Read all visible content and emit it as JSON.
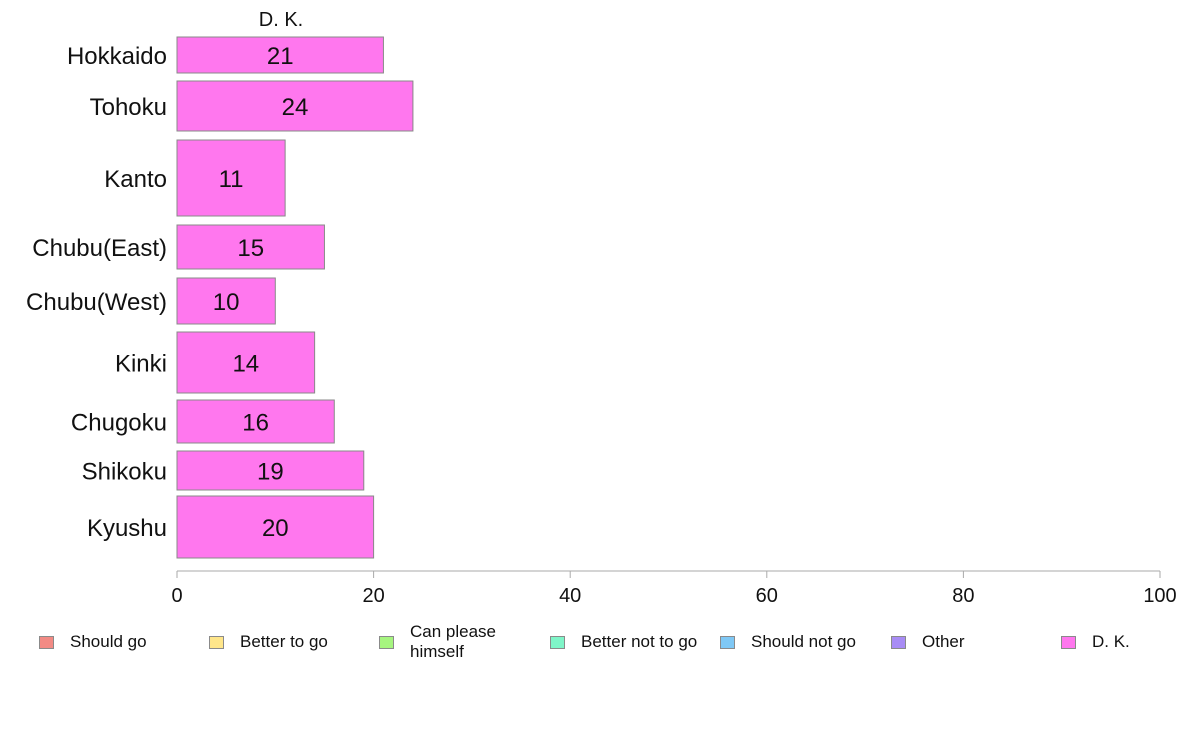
{
  "chart_data": {
    "type": "bar",
    "orientation": "horizontal",
    "stacked": true,
    "title": "D. K.",
    "categories": [
      "Hokkaido",
      "Tohoku",
      "Kanto",
      "Chubu(East)",
      "Chubu(West)",
      "Kinki",
      "Chugoku",
      "Shikoku",
      "Kyushu"
    ],
    "series": [
      {
        "name": "D. K.",
        "color": "#ff77ee",
        "values": [
          21,
          24,
          11,
          15,
          10,
          14,
          16,
          19,
          20
        ]
      }
    ],
    "xlim": [
      0,
      100
    ],
    "xticks": [
      0,
      20,
      40,
      60,
      80,
      100
    ],
    "grid": false,
    "legend_position": "bottom"
  },
  "legend": [
    {
      "label": "Should go",
      "color": "#f28a84"
    },
    {
      "label": "Better to go",
      "color": "#ffe68a"
    },
    {
      "label": "Can please\nhimself",
      "color": "#a6f57f"
    },
    {
      "label": "Better not to go",
      "color": "#7ff5c8"
    },
    {
      "label": "Should not go",
      "color": "#7fc8f5"
    },
    {
      "label": "Other",
      "color": "#a88cf5"
    },
    {
      "label": "D. K.",
      "color": "#ff77ee"
    }
  ]
}
